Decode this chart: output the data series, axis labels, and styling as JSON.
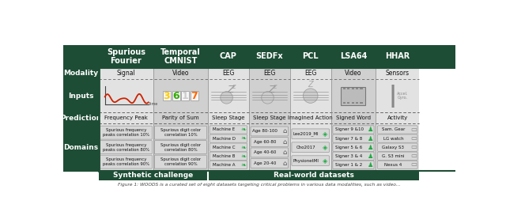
{
  "bg_color": "#ffffff",
  "dark_green": "#1e4d35",
  "light_gray_even": "#e2e2e2",
  "light_gray_odd": "#d0d0d0",
  "header_text_color": "#ffffff",
  "col_headers": [
    "Spurious\nFourier",
    "Temporal\nCMNIST",
    "CAP",
    "SEDFx",
    "PCL",
    "LSA64",
    "HHAR"
  ],
  "modality_row": [
    "Signal",
    "Video",
    "EEG",
    "EEG",
    "EEG",
    "Video",
    "Sensors"
  ],
  "prediction_row": [
    "Frequency Peak",
    "Parity of Sum",
    "Sleep Stage",
    "Sleep Stage",
    "Imagined Action",
    "Signed Word",
    "Activity"
  ],
  "domains_col0": [
    "Spurious frequency\npeaks correlation 90%",
    "Spurious frequency\npeaks correlation 80%",
    "Spurious frequency\npeaks correlation 10%"
  ],
  "domains_col1": [
    "Spurious digit color\ncorrelation 90%",
    "Spurious digit color\ncorrelation 80%",
    "Spurious digit color\ncorrelation 10%"
  ],
  "domains_col2": [
    "Machine A",
    "Machine B",
    "Machine C",
    "Machine D",
    "Machine E"
  ],
  "domains_col3": [
    "Age 20-40",
    "Age 40-60",
    "Age 60-80",
    "Age 80-100"
  ],
  "domains_col4": [
    "PhysionetMI",
    "Cho2017",
    "Lee2019_MI"
  ],
  "domains_col5": [
    "Signer 1 & 2",
    "Signer 3 & 4",
    "Signer 5 & 6",
    "Signer 7 & 8",
    "Signer 9 &10"
  ],
  "domains_col6": [
    "Nexus 4",
    "G. S3 mini",
    "Galaxy S3",
    "LG watch",
    "Sam. Gear"
  ],
  "footer_synthetic": "Synthetic challenge",
  "footer_real": "Real-world datasets",
  "caption": "Figure 1: WOODS is a curated set of eight datasets targeting critical problems in various data modalities, such as video..."
}
